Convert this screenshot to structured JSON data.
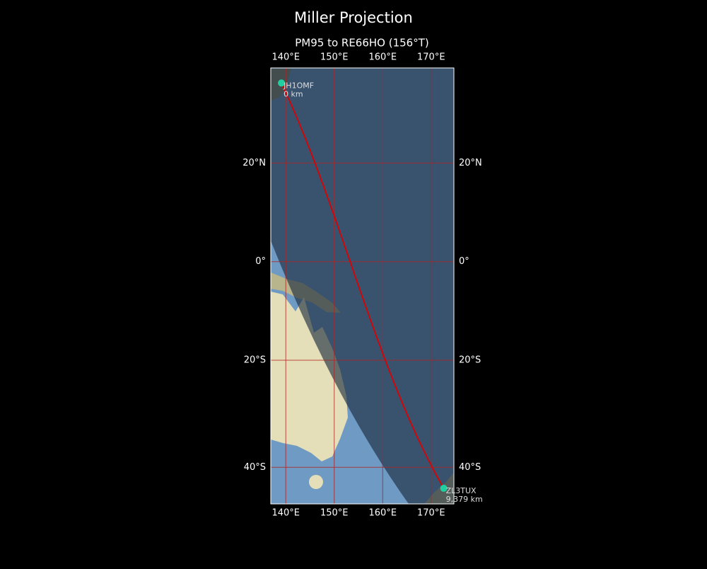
{
  "map": {
    "title": "Miller Projection",
    "subtitle": "PM95 to RE66HO (156°T)",
    "lonlim": [
      136.9,
      174.7
    ],
    "latlim": [
      -46.2,
      37.9
    ],
    "xticks": [
      {
        "value": 140,
        "label": "140°E"
      },
      {
        "value": 150,
        "label": "150°E"
      },
      {
        "value": 160,
        "label": "160°E"
      },
      {
        "value": 170,
        "label": "170°E"
      }
    ],
    "yticks": [
      {
        "value": 20,
        "label": "20°N"
      },
      {
        "value": 0,
        "label": "0°"
      },
      {
        "value": -20,
        "label": "20°S"
      },
      {
        "value": -40,
        "label": "40°S"
      }
    ],
    "grid_color": "#b22222",
    "path_color": "#dd0000",
    "point_color": "#1fd1a0",
    "points": [
      {
        "lon": 139.1,
        "lat": 35.2,
        "label": "JH1OMF",
        "distance": "0 km"
      },
      {
        "lon": 172.6,
        "lat": -43.6,
        "label": "ZL3TUX",
        "distance": "9,379 km"
      }
    ]
  }
}
